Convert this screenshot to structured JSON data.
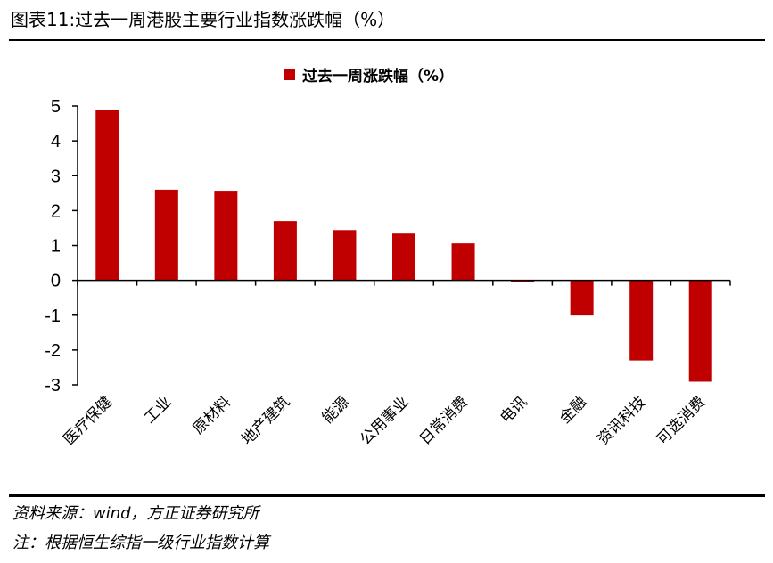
{
  "figure": {
    "title": "图表11:过去一周港股主要行业指数涨跌幅（%）"
  },
  "notes": {
    "source": "资料来源：wind，方正证券研究所",
    "note": "注：根据恒生综指一级行业指数计算"
  },
  "colors": {
    "bar": "#c00000",
    "axis": "#000000"
  },
  "chart_data": {
    "type": "bar",
    "categories": [
      "医疗保健",
      "工业",
      "原材料",
      "地产建筑",
      "能源",
      "公用事业",
      "日常消费",
      "电讯",
      "金融",
      "资讯科技",
      "可选消费"
    ],
    "series": [
      {
        "name": "过去一周涨跌幅（%）",
        "values": [
          4.88,
          2.6,
          2.57,
          1.7,
          1.44,
          1.34,
          1.06,
          -0.05,
          -1.01,
          -2.3,
          -2.91
        ]
      }
    ],
    "yticks": [
      "5",
      "4",
      "3",
      "2",
      "1",
      "0",
      "-1",
      "-2",
      "-3"
    ],
    "ylim": [
      -3,
      5
    ],
    "legend": "top-center",
    "grid": false
  }
}
